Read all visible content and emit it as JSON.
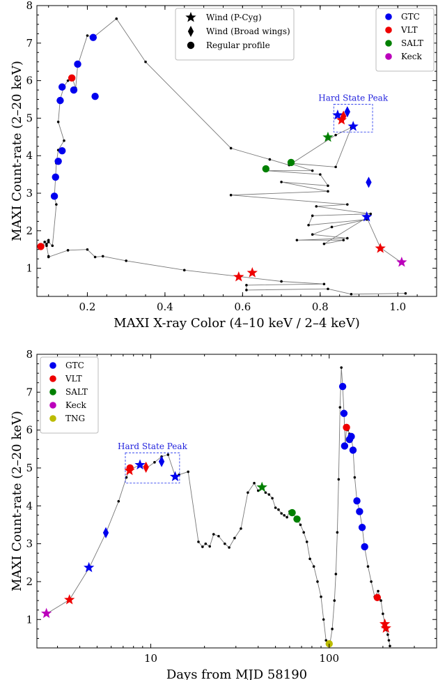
{
  "chart_data": [
    {
      "type": "scatter",
      "xlabel": "MAXI X-ray Color (4–10 keV / 2–4 keV)",
      "ylabel": "MAXI Count-rate (2–20 keV)",
      "xlim": [
        0.07,
        1.1
      ],
      "ylim": [
        0.25,
        8
      ],
      "xticks": [
        "0.2",
        "0.4",
        "0.6",
        "0.8",
        "1.0"
      ],
      "xtick_values": [
        0.2,
        0.4,
        0.6,
        0.8,
        1.0
      ],
      "yticks": [
        "1",
        "2",
        "3",
        "4",
        "5",
        "6",
        "7",
        "8"
      ],
      "ytick_values": [
        1,
        2,
        3,
        4,
        5,
        6,
        7,
        8
      ],
      "legend_instruments": {
        "placement": "top-right",
        "entries": [
          {
            "label": "GTC",
            "color": "#0000ee"
          },
          {
            "label": "VLT",
            "color": "#ee0000"
          },
          {
            "label": "SALT",
            "color": "#008000"
          },
          {
            "label": "Keck",
            "color": "#bb00bb"
          }
        ]
      },
      "legend_profiles": {
        "placement": "top-center",
        "entries": [
          {
            "label": "Wind (P-Cyg)",
            "marker": "star"
          },
          {
            "label": "Wind (Broad wings)",
            "marker": "diamond"
          },
          {
            "label": "Regular profile",
            "marker": "circle"
          }
        ]
      },
      "annotation": {
        "text": "Hard State Peak",
        "box": {
          "x": [
            0.835,
            0.935
          ],
          "y": [
            4.63,
            5.37
          ]
        }
      },
      "track": [
        [
          1.02,
          0.33
        ],
        [
          0.88,
          0.31
        ],
        [
          0.82,
          0.45
        ],
        [
          0.61,
          0.42
        ],
        [
          0.61,
          0.55
        ],
        [
          0.81,
          0.58
        ],
        [
          0.7,
          0.65
        ],
        [
          0.45,
          0.95
        ],
        [
          0.3,
          1.2
        ],
        [
          0.24,
          1.32
        ],
        [
          0.22,
          1.3
        ],
        [
          0.2,
          1.5
        ],
        [
          0.15,
          1.48
        ],
        [
          0.1,
          1.3
        ],
        [
          0.1,
          1.32
        ],
        [
          0.095,
          1.6
        ],
        [
          0.1,
          1.75
        ],
        [
          0.09,
          1.7
        ],
        [
          0.085,
          1.6
        ],
        [
          0.095,
          1.65
        ],
        [
          0.1,
          1.7
        ],
        [
          0.11,
          1.6
        ],
        [
          0.12,
          2.7
        ],
        [
          0.115,
          2.9
        ],
        [
          0.118,
          3.4
        ],
        [
          0.12,
          3.8
        ],
        [
          0.125,
          4.15
        ],
        [
          0.14,
          4.4
        ],
        [
          0.125,
          4.9
        ],
        [
          0.13,
          5.5
        ],
        [
          0.14,
          5.85
        ],
        [
          0.15,
          6.0
        ],
        [
          0.16,
          6.1
        ],
        [
          0.17,
          5.8
        ],
        [
          0.175,
          6.4
        ],
        [
          0.2,
          7.2
        ],
        [
          0.215,
          7.15
        ],
        [
          0.275,
          7.65
        ],
        [
          0.35,
          6.5
        ],
        [
          0.57,
          4.2
        ],
        [
          0.67,
          3.9
        ],
        [
          0.72,
          3.75
        ],
        [
          0.84,
          4.55
        ],
        [
          0.88,
          4.75
        ],
        [
          0.84,
          3.7
        ],
        [
          0.72,
          3.8
        ],
        [
          0.78,
          3.6
        ],
        [
          0.66,
          3.6
        ],
        [
          0.8,
          3.5
        ],
        [
          0.82,
          3.2
        ],
        [
          0.7,
          3.3
        ],
        [
          0.82,
          3.05
        ],
        [
          0.57,
          2.95
        ],
        [
          0.87,
          2.7
        ],
        [
          0.79,
          2.65
        ],
        [
          0.93,
          2.45
        ],
        [
          0.78,
          2.4
        ],
        [
          0.77,
          2.15
        ],
        [
          0.92,
          2.3
        ],
        [
          0.83,
          2.1
        ],
        [
          0.78,
          1.9
        ],
        [
          0.87,
          1.8
        ],
        [
          0.74,
          1.75
        ],
        [
          0.86,
          1.75
        ],
        [
          0.81,
          1.65
        ],
        [
          0.92,
          2.35
        ],
        [
          0.955,
          1.55
        ],
        [
          1.01,
          1.15
        ]
      ],
      "points": [
        {
          "x": 0.08,
          "y": 1.58,
          "inst": "VLT",
          "shape": "circle"
        },
        {
          "x": 0.115,
          "y": 2.92,
          "inst": "GTC",
          "shape": "circle"
        },
        {
          "x": 0.118,
          "y": 3.43,
          "inst": "GTC",
          "shape": "circle"
        },
        {
          "x": 0.125,
          "y": 3.85,
          "inst": "GTC",
          "shape": "circle"
        },
        {
          "x": 0.135,
          "y": 4.13,
          "inst": "GTC",
          "shape": "circle"
        },
        {
          "x": 0.13,
          "y": 5.47,
          "inst": "GTC",
          "shape": "circle"
        },
        {
          "x": 0.135,
          "y": 5.83,
          "inst": "GTC",
          "shape": "circle"
        },
        {
          "x": 0.16,
          "y": 6.07,
          "inst": "VLT",
          "shape": "circle"
        },
        {
          "x": 0.165,
          "y": 5.75,
          "inst": "GTC",
          "shape": "circle"
        },
        {
          "x": 0.175,
          "y": 6.44,
          "inst": "GTC",
          "shape": "circle"
        },
        {
          "x": 0.215,
          "y": 7.15,
          "inst": "GTC",
          "shape": "circle"
        },
        {
          "x": 0.22,
          "y": 5.58,
          "inst": "GTC",
          "shape": "circle"
        },
        {
          "x": 0.66,
          "y": 3.65,
          "inst": "SALT",
          "shape": "circle"
        },
        {
          "x": 0.725,
          "y": 3.82,
          "inst": "SALT",
          "shape": "circle"
        },
        {
          "x": 0.59,
          "y": 0.77,
          "inst": "VLT",
          "shape": "star"
        },
        {
          "x": 0.625,
          "y": 0.88,
          "inst": "VLT",
          "shape": "star"
        },
        {
          "x": 0.82,
          "y": 4.49,
          "inst": "SALT",
          "shape": "star"
        },
        {
          "x": 0.845,
          "y": 5.08,
          "inst": "GTC",
          "shape": "star"
        },
        {
          "x": 0.855,
          "y": 4.95,
          "inst": "VLT",
          "shape": "star"
        },
        {
          "x": 0.885,
          "y": 4.78,
          "inst": "GTC",
          "shape": "star"
        },
        {
          "x": 0.86,
          "y": 5.05,
          "inst": "VLT",
          "shape": "diamond"
        },
        {
          "x": 0.87,
          "y": 5.17,
          "inst": "GTC",
          "shape": "diamond"
        },
        {
          "x": 0.925,
          "y": 3.29,
          "inst": "GTC",
          "shape": "diamond"
        },
        {
          "x": 0.92,
          "y": 2.37,
          "inst": "GTC",
          "shape": "star"
        },
        {
          "x": 0.955,
          "y": 1.53,
          "inst": "VLT",
          "shape": "star"
        },
        {
          "x": 1.01,
          "y": 1.16,
          "inst": "Keck",
          "shape": "star"
        }
      ]
    },
    {
      "type": "scatter",
      "xscale": "log",
      "xlabel": "Days from MJD 58190",
      "ylabel": "MAXI Count-rate (2–20 keV)",
      "xlim": [
        2.3,
        400
      ],
      "ylim": [
        0.25,
        8
      ],
      "xticks": [
        "10",
        "100"
      ],
      "xtick_values": [
        10,
        100
      ],
      "yticks": [
        "1",
        "2",
        "3",
        "4",
        "5",
        "6",
        "7",
        "8"
      ],
      "ytick_values": [
        1,
        2,
        3,
        4,
        5,
        6,
        7,
        8
      ],
      "legend_instruments": {
        "placement": "top-left",
        "entries": [
          {
            "label": "GTC",
            "color": "#0000ee"
          },
          {
            "label": "VLT",
            "color": "#ee0000"
          },
          {
            "label": "SALT",
            "color": "#008000"
          },
          {
            "label": "Keck",
            "color": "#bb00bb"
          },
          {
            "label": "TNG",
            "color": "#bbbb00"
          }
        ]
      },
      "annotation": {
        "text": "Hard State Peak",
        "box": {
          "x": [
            7.2,
            14.5
          ],
          "y": [
            4.6,
            5.4
          ]
        }
      },
      "track": [
        [
          2.6,
          1.15
        ],
        [
          3.5,
          1.52
        ],
        [
          4.5,
          2.35
        ],
        [
          5.6,
          3.28
        ],
        [
          6.6,
          4.12
        ],
        [
          7.3,
          4.75
        ],
        [
          7.6,
          4.95
        ],
        [
          8.7,
          5.08
        ],
        [
          9.5,
          5.0
        ],
        [
          10.5,
          5.15
        ],
        [
          11.5,
          5.3
        ],
        [
          12.5,
          5.35
        ],
        [
          13.7,
          4.78
        ],
        [
          14.4,
          4.82
        ],
        [
          16.2,
          4.9
        ],
        [
          18.5,
          3.05
        ],
        [
          19.5,
          2.92
        ],
        [
          20.3,
          3.0
        ],
        [
          21.4,
          2.93
        ],
        [
          22.5,
          3.25
        ],
        [
          24,
          3.2
        ],
        [
          26,
          3.0
        ],
        [
          27.5,
          2.9
        ],
        [
          29.5,
          3.15
        ],
        [
          32,
          3.4
        ],
        [
          35,
          4.35
        ],
        [
          38,
          4.6
        ],
        [
          40,
          4.4
        ],
        [
          42,
          4.47
        ],
        [
          44,
          4.35
        ],
        [
          46,
          4.3
        ],
        [
          48,
          4.2
        ],
        [
          50,
          3.95
        ],
        [
          52,
          3.9
        ],
        [
          54,
          3.8
        ],
        [
          56,
          3.75
        ],
        [
          58,
          3.7
        ],
        [
          60,
          3.85
        ],
        [
          63,
          3.78
        ],
        [
          66,
          3.65
        ],
        [
          69,
          3.5
        ],
        [
          72,
          3.3
        ],
        [
          75,
          3.05
        ],
        [
          78,
          2.6
        ],
        [
          82,
          2.4
        ],
        [
          86,
          2.0
        ],
        [
          90,
          1.6
        ],
        [
          93,
          1.0
        ],
        [
          96,
          0.45
        ],
        [
          98,
          0.35
        ],
        [
          101,
          0.37
        ],
        [
          104,
          0.75
        ],
        [
          107,
          1.5
        ],
        [
          109,
          2.2
        ],
        [
          111,
          3.3
        ],
        [
          113,
          4.7
        ],
        [
          115,
          6.6
        ],
        [
          117,
          7.65
        ],
        [
          119,
          7.15
        ],
        [
          121,
          6.45
        ],
        [
          123,
          5.6
        ],
        [
          125,
          6.05
        ],
        [
          127,
          6.0
        ],
        [
          130,
          5.9
        ],
        [
          133,
          5.8
        ],
        [
          136,
          5.5
        ],
        [
          139,
          4.75
        ],
        [
          143,
          4.15
        ],
        [
          148,
          3.85
        ],
        [
          153,
          3.45
        ],
        [
          158,
          2.9
        ],
        [
          165,
          2.4
        ],
        [
          172,
          2.0
        ],
        [
          180,
          1.6
        ],
        [
          188,
          1.75
        ],
        [
          195,
          1.5
        ],
        [
          200,
          1.15
        ],
        [
          205,
          0.87
        ],
        [
          210,
          0.72
        ],
        [
          213,
          0.6
        ],
        [
          216,
          0.45
        ],
        [
          219,
          0.3
        ]
      ],
      "points": [
        {
          "x": 2.6,
          "y": 1.16,
          "inst": "Keck",
          "shape": "star"
        },
        {
          "x": 3.5,
          "y": 1.52,
          "inst": "VLT",
          "shape": "star"
        },
        {
          "x": 4.5,
          "y": 2.37,
          "inst": "GTC",
          "shape": "star"
        },
        {
          "x": 5.6,
          "y": 3.29,
          "inst": "GTC",
          "shape": "diamond"
        },
        {
          "x": 7.6,
          "y": 4.93,
          "inst": "VLT",
          "shape": "star"
        },
        {
          "x": 7.65,
          "y": 5.0,
          "inst": "VLT",
          "shape": "circle"
        },
        {
          "x": 8.7,
          "y": 5.08,
          "inst": "GTC",
          "shape": "star"
        },
        {
          "x": 9.4,
          "y": 5.02,
          "inst": "VLT",
          "shape": "diamond"
        },
        {
          "x": 11.5,
          "y": 5.17,
          "inst": "GTC",
          "shape": "diamond"
        },
        {
          "x": 13.7,
          "y": 4.77,
          "inst": "GTC",
          "shape": "star"
        },
        {
          "x": 42,
          "y": 4.49,
          "inst": "SALT",
          "shape": "star"
        },
        {
          "x": 62,
          "y": 3.82,
          "inst": "SALT",
          "shape": "circle"
        },
        {
          "x": 66,
          "y": 3.65,
          "inst": "SALT",
          "shape": "circle"
        },
        {
          "x": 100,
          "y": 0.36,
          "inst": "TNG",
          "shape": "circle"
        },
        {
          "x": 119,
          "y": 7.15,
          "inst": "GTC",
          "shape": "circle"
        },
        {
          "x": 121,
          "y": 6.44,
          "inst": "GTC",
          "shape": "circle"
        },
        {
          "x": 122,
          "y": 5.58,
          "inst": "GTC",
          "shape": "circle"
        },
        {
          "x": 125,
          "y": 6.07,
          "inst": "VLT",
          "shape": "circle"
        },
        {
          "x": 130,
          "y": 5.75,
          "inst": "GTC",
          "shape": "circle"
        },
        {
          "x": 133,
          "y": 5.83,
          "inst": "GTC",
          "shape": "circle"
        },
        {
          "x": 136,
          "y": 5.47,
          "inst": "GTC",
          "shape": "circle"
        },
        {
          "x": 143,
          "y": 4.13,
          "inst": "GTC",
          "shape": "circle"
        },
        {
          "x": 148,
          "y": 3.85,
          "inst": "GTC",
          "shape": "circle"
        },
        {
          "x": 153,
          "y": 3.43,
          "inst": "GTC",
          "shape": "circle"
        },
        {
          "x": 158,
          "y": 2.92,
          "inst": "GTC",
          "shape": "circle"
        },
        {
          "x": 186,
          "y": 1.58,
          "inst": "VLT",
          "shape": "circle"
        },
        {
          "x": 205,
          "y": 0.88,
          "inst": "VLT",
          "shape": "star"
        },
        {
          "x": 208,
          "y": 0.77,
          "inst": "VLT",
          "shape": "star"
        }
      ]
    }
  ]
}
